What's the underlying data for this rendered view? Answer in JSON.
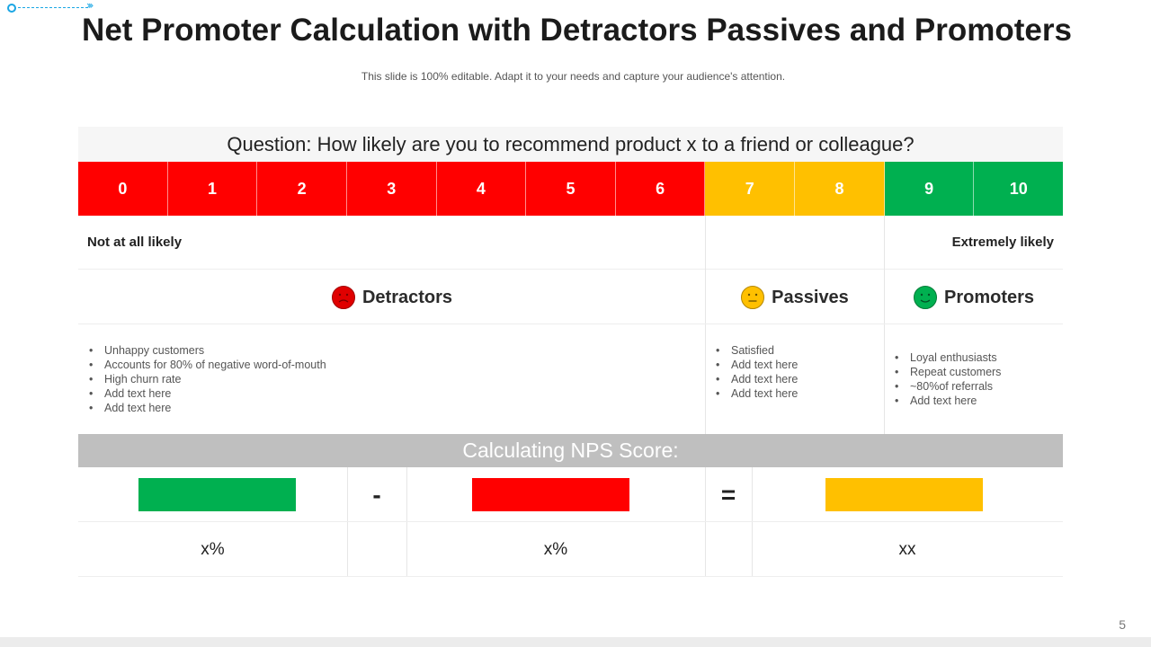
{
  "title": "Net Promoter Calculation with Detractors Passives and Promoters",
  "subtitle": "This slide is 100% editable. Adapt it to your needs and capture your audience's attention.",
  "question": "Question: How likely are you to recommend product x to a friend or colleague?",
  "scale": {
    "cells": [
      "0",
      "1",
      "2",
      "3",
      "4",
      "5",
      "6",
      "7",
      "8",
      "9",
      "10"
    ],
    "colors": {
      "detractor": "#ff0000",
      "passive": "#ffc000",
      "promoter": "#00b050"
    },
    "label_low": "Not at all likely",
    "label_high": "Extremely likely"
  },
  "categories": {
    "detractors": {
      "label": "Detractors",
      "icon": "sad-face-icon",
      "bullets": [
        "Unhappy customers",
        "Accounts  for 80% of negative  word-of-mouth",
        "High churn rate",
        "Add text here",
        "Add text here"
      ]
    },
    "passives": {
      "label": "Passives",
      "icon": "neutral-face-icon",
      "bullets": [
        "Satisfied",
        "Add text here",
        "Add text here",
        "Add text here"
      ]
    },
    "promoters": {
      "label": "Promoters",
      "icon": "happy-face-icon",
      "bullets": [
        "Loyal enthusiasts",
        "Repeat customers",
        "~80%of referrals",
        "Add text here"
      ]
    }
  },
  "calc": {
    "heading": "Calculating NPS Score:",
    "minus": "-",
    "equals": "=",
    "values": {
      "promoters": "x%",
      "detractors": "x%",
      "result": "xx"
    }
  },
  "page_number": "5"
}
